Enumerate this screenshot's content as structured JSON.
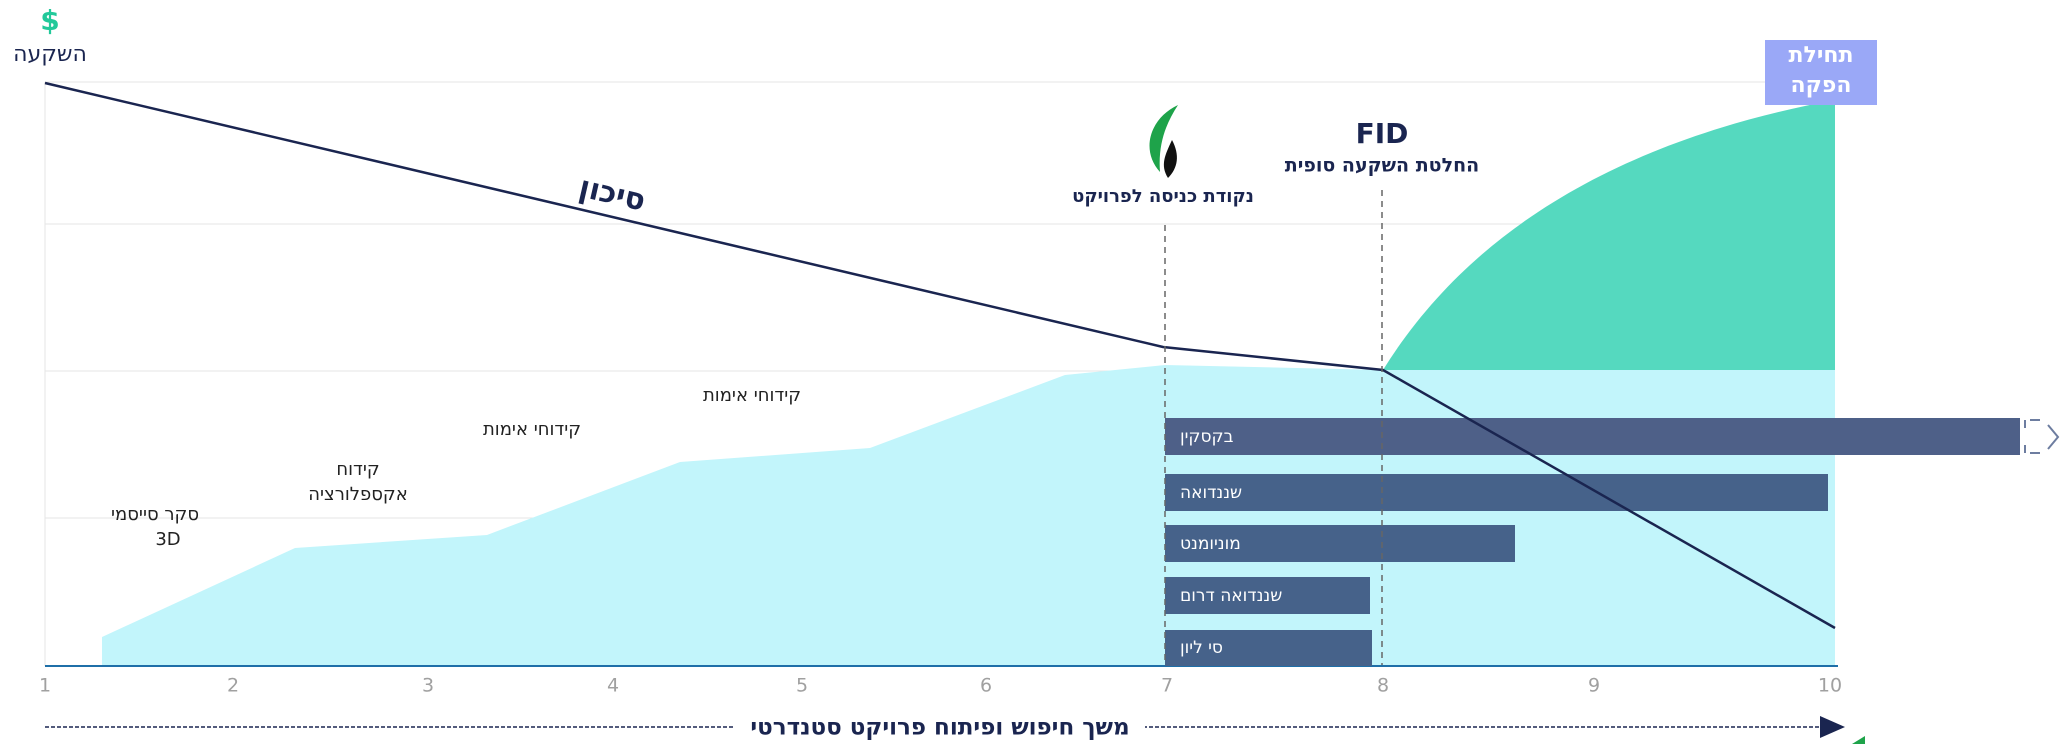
{
  "y_axis": {
    "icon": "$",
    "label": "השקעה"
  },
  "production_box": [
    "תחילת",
    "הפקה"
  ],
  "risk_label": "סיכון",
  "entry_point": "נקודת כניסה לפרויקט",
  "fid": {
    "title": "FID",
    "subtitle": "החלטת השקעה סופית"
  },
  "stages": [
    [
      "סקר סייסמי",
      "3D"
    ],
    [
      "קידוח",
      "אקספלורציה"
    ],
    [
      "קידוחי אימות"
    ],
    [
      "קידוחי אימות"
    ]
  ],
  "projects": [
    "בקסקין",
    "שננדואה",
    "מוניומנט",
    "שננדואה דרום",
    "סי ליון"
  ],
  "x_ticks": [
    1,
    2,
    3,
    4,
    5,
    6,
    7,
    8,
    9,
    10
  ],
  "x_axis_label": "משך חיפוש ופיתוח פרויקט סטנדרטי"
}
